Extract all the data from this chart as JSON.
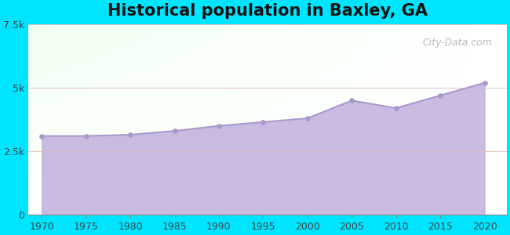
{
  "title": "Historical population in Baxley, GA",
  "years": [
    1970,
    1975,
    1980,
    1985,
    1990,
    1995,
    2000,
    2005,
    2010,
    2015,
    2020
  ],
  "population": [
    3100,
    3100,
    3150,
    3300,
    3500,
    3650,
    3800,
    4500,
    4200,
    4700,
    5200
  ],
  "ylim": [
    0,
    7500
  ],
  "yticks": [
    0,
    2500,
    5000,
    7500
  ],
  "ytick_labels": [
    "0",
    "2.5k",
    "5k",
    "7.5k"
  ],
  "line_color": "#a898cc",
  "fill_color_bottom": "#c4b4de",
  "fill_color_top": "#d8cce8",
  "marker_color": "#a898cc",
  "background_color": "#00e5ff",
  "title_fontsize": 15,
  "watermark": "City-Data.com",
  "xlim_left": 1968.5,
  "xlim_right": 2022.5
}
